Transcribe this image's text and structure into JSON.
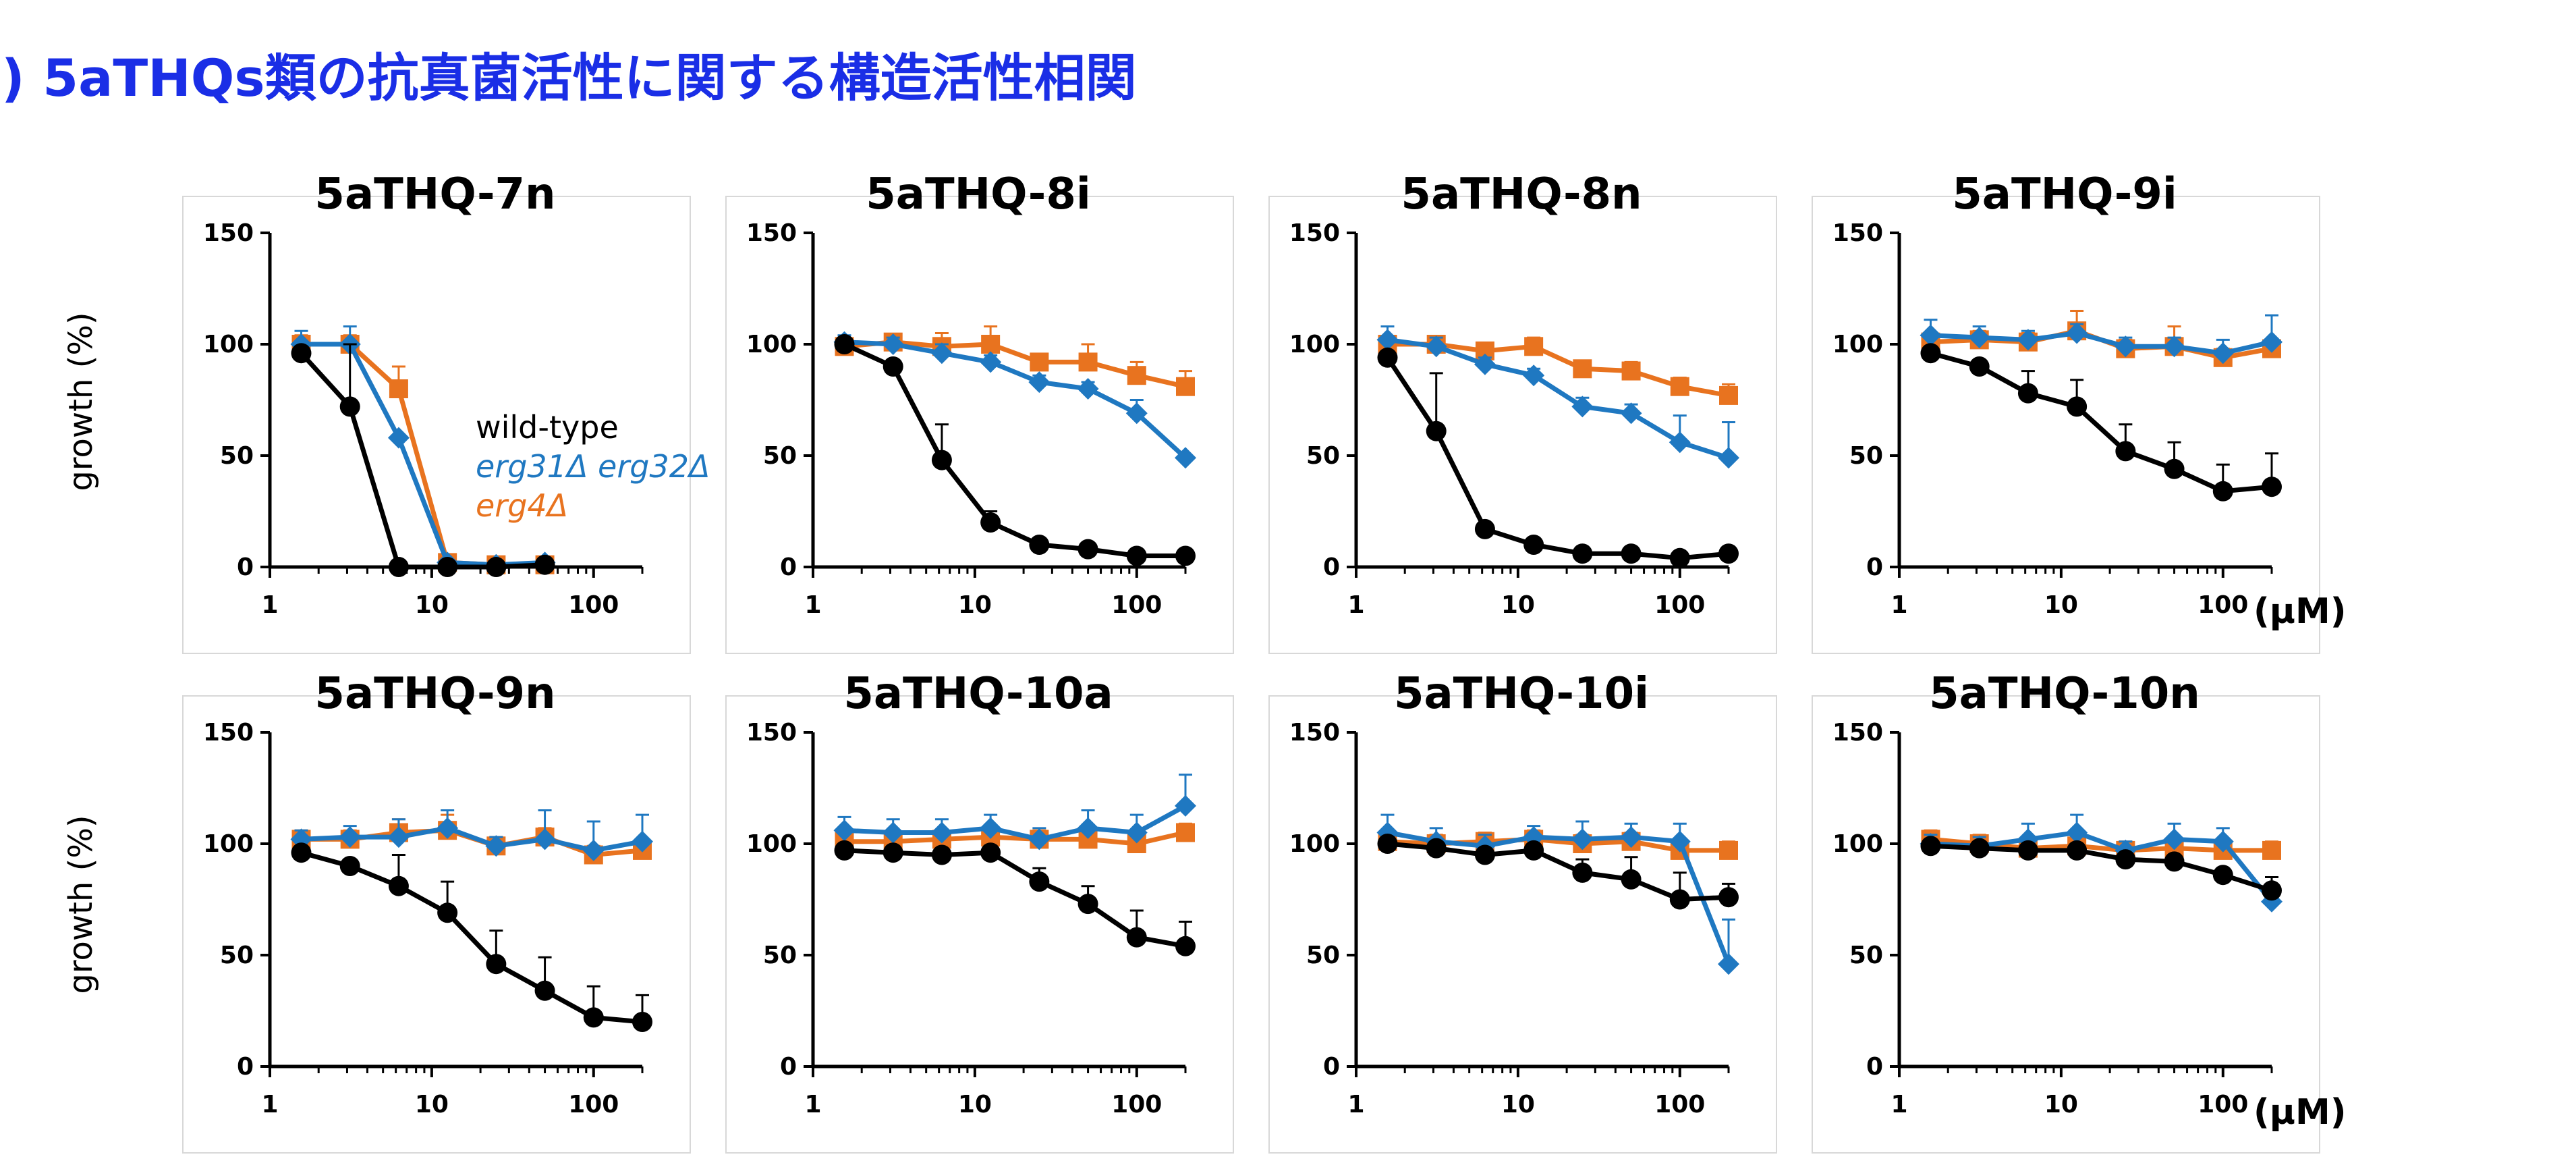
{
  "title": ") 5aTHQs類の抗真菌活性に関する構造活性相関",
  "ylabel": "growth (%)",
  "unit_label": "(μM)",
  "colors": {
    "wild_type": "#000000",
    "erg31_erg32": "#1f78c1",
    "erg4": "#e8731f",
    "title": "#1a2ee6"
  },
  "legend": [
    {
      "name": "wild-type",
      "italic": false,
      "color": "#000000"
    },
    {
      "name": "erg31Δ erg32Δ",
      "italic": true,
      "color": "#1f78c1"
    },
    {
      "name": "erg4Δ",
      "italic": true,
      "color": "#e8731f"
    }
  ],
  "chart_data": [
    {
      "type": "line",
      "title": "5aTHQ-7n",
      "x": [
        1.5625,
        3.125,
        6.25,
        12.5,
        25,
        50
      ],
      "xscale": "log",
      "xlim": [
        1,
        200
      ],
      "xticks": [
        "1",
        "10",
        "100"
      ],
      "ylim": [
        0,
        150
      ],
      "yticks": [
        "0",
        "50",
        "100",
        "150"
      ],
      "series": [
        {
          "name": "wild-type",
          "marker": "circle",
          "values": [
            96,
            72,
            0,
            0,
            0,
            1
          ],
          "errors": [
            0,
            28,
            0,
            0,
            0,
            0
          ]
        },
        {
          "name": "erg31Δ erg32Δ",
          "marker": "diamond",
          "values": [
            100,
            100,
            58,
            2,
            1,
            2
          ],
          "errors": [
            6,
            8,
            0,
            0,
            0,
            0
          ]
        },
        {
          "name": "erg4Δ",
          "marker": "square",
          "values": [
            100,
            100,
            80,
            2,
            1,
            1
          ],
          "errors": [
            4,
            4,
            10,
            0,
            0,
            0
          ]
        }
      ]
    },
    {
      "type": "line",
      "title": "5aTHQ-8i",
      "x": [
        1.5625,
        3.125,
        6.25,
        12.5,
        25,
        50,
        100,
        200
      ],
      "xscale": "log",
      "xlim": [
        1,
        200
      ],
      "xticks": [
        "1",
        "10",
        "100"
      ],
      "ylim": [
        0,
        150
      ],
      "yticks": [
        "0",
        "50",
        "100",
        "150"
      ],
      "series": [
        {
          "name": "wild-type",
          "marker": "circle",
          "values": [
            100,
            90,
            48,
            20,
            10,
            8,
            5,
            5
          ],
          "errors": [
            0,
            0,
            16,
            5,
            0,
            0,
            0,
            0
          ]
        },
        {
          "name": "erg31Δ erg32Δ",
          "marker": "diamond",
          "values": [
            101,
            100,
            96,
            92,
            83,
            80,
            69,
            49
          ],
          "errors": [
            3,
            3,
            4,
            3,
            3,
            3,
            6,
            0
          ]
        },
        {
          "name": "erg4Δ",
          "marker": "square",
          "values": [
            99,
            101,
            99,
            100,
            92,
            92,
            86,
            81
          ],
          "errors": [
            3,
            3,
            6,
            8,
            3,
            8,
            6,
            7
          ]
        }
      ]
    },
    {
      "type": "line",
      "title": "5aTHQ-8n",
      "x": [
        1.5625,
        3.125,
        6.25,
        12.5,
        25,
        50,
        100,
        200
      ],
      "xscale": "log",
      "xlim": [
        1,
        200
      ],
      "xticks": [
        "1",
        "10",
        "100"
      ],
      "ylim": [
        0,
        150
      ],
      "yticks": [
        "0",
        "50",
        "100",
        "150"
      ],
      "series": [
        {
          "name": "wild-type",
          "marker": "circle",
          "values": [
            94,
            61,
            17,
            10,
            6,
            6,
            4,
            6
          ],
          "errors": [
            0,
            26,
            0,
            0,
            0,
            0,
            0,
            0
          ]
        },
        {
          "name": "erg31Δ erg32Δ",
          "marker": "diamond",
          "values": [
            102,
            99,
            91,
            86,
            72,
            69,
            56,
            49
          ],
          "errors": [
            6,
            4,
            3,
            3,
            4,
            4,
            12,
            16
          ]
        },
        {
          "name": "erg4Δ",
          "marker": "square",
          "values": [
            100,
            100,
            97,
            99,
            89,
            88,
            81,
            77
          ],
          "errors": [
            3,
            3,
            3,
            4,
            3,
            4,
            4,
            5
          ]
        }
      ]
    },
    {
      "type": "line",
      "title": "5aTHQ-9i",
      "x": [
        1.5625,
        3.125,
        6.25,
        12.5,
        25,
        50,
        100,
        200
      ],
      "xscale": "log",
      "xlim": [
        1,
        200
      ],
      "xticks": [
        "1",
        "10",
        "100"
      ],
      "ylim": [
        0,
        150
      ],
      "yticks": [
        "0",
        "50",
        "100",
        "150"
      ],
      "series": [
        {
          "name": "wild-type",
          "marker": "circle",
          "values": [
            96,
            90,
            78,
            72,
            52,
            44,
            34,
            36
          ],
          "errors": [
            0,
            0,
            10,
            12,
            12,
            12,
            12,
            15
          ]
        },
        {
          "name": "erg31Δ erg32Δ",
          "marker": "diamond",
          "values": [
            104,
            103,
            102,
            105,
            99,
            99,
            96,
            101
          ],
          "errors": [
            7,
            5,
            4,
            4,
            4,
            4,
            6,
            12
          ]
        },
        {
          "name": "erg4Δ",
          "marker": "square",
          "values": [
            101,
            102,
            101,
            106,
            98,
            99,
            94,
            98
          ],
          "errors": [
            4,
            4,
            4,
            9,
            4,
            9,
            4,
            4
          ]
        }
      ]
    },
    {
      "type": "line",
      "title": "5aTHQ-9n",
      "x": [
        1.5625,
        3.125,
        6.25,
        12.5,
        25,
        50,
        100,
        200
      ],
      "xscale": "log",
      "xlim": [
        1,
        200
      ],
      "xticks": [
        "1",
        "10",
        "100"
      ],
      "ylim": [
        0,
        150
      ],
      "yticks": [
        "0",
        "50",
        "100",
        "150"
      ],
      "series": [
        {
          "name": "wild-type",
          "marker": "circle",
          "values": [
            96,
            90,
            81,
            69,
            46,
            34,
            22,
            20
          ],
          "errors": [
            0,
            0,
            14,
            14,
            15,
            15,
            14,
            12
          ]
        },
        {
          "name": "erg31Δ erg32Δ",
          "marker": "diamond",
          "values": [
            102,
            103,
            103,
            107,
            99,
            102,
            97,
            101
          ],
          "errors": [
            4,
            5,
            8,
            8,
            4,
            13,
            13,
            12
          ]
        },
        {
          "name": "erg4Δ",
          "marker": "square",
          "values": [
            102,
            102,
            105,
            106,
            99,
            103,
            95,
            97
          ],
          "errors": [
            4,
            4,
            6,
            7,
            4,
            4,
            4,
            4
          ]
        }
      ]
    },
    {
      "type": "line",
      "title": "5aTHQ-10a",
      "x": [
        1.5625,
        3.125,
        6.25,
        12.5,
        25,
        50,
        100,
        200
      ],
      "xscale": "log",
      "xlim": [
        1,
        200
      ],
      "xticks": [
        "1",
        "10",
        "100"
      ],
      "ylim": [
        0,
        150
      ],
      "yticks": [
        "0",
        "50",
        "100",
        "150"
      ],
      "series": [
        {
          "name": "wild-type",
          "marker": "circle",
          "values": [
            97,
            96,
            95,
            96,
            83,
            73,
            58,
            54
          ],
          "errors": [
            0,
            0,
            0,
            0,
            6,
            8,
            12,
            11
          ]
        },
        {
          "name": "erg31Δ erg32Δ",
          "marker": "diamond",
          "values": [
            106,
            105,
            105,
            107,
            102,
            107,
            105,
            117
          ],
          "errors": [
            6,
            6,
            6,
            6,
            5,
            8,
            8,
            14
          ]
        },
        {
          "name": "erg4Δ",
          "marker": "square",
          "values": [
            101,
            101,
            102,
            103,
            102,
            102,
            100,
            105
          ],
          "errors": [
            4,
            4,
            4,
            4,
            4,
            4,
            4,
            4
          ]
        }
      ]
    },
    {
      "type": "line",
      "title": "5aTHQ-10i",
      "x": [
        1.5625,
        3.125,
        6.25,
        12.5,
        25,
        50,
        100,
        200
      ],
      "xscale": "log",
      "xlim": [
        1,
        200
      ],
      "xticks": [
        "1",
        "10",
        "100"
      ],
      "ylim": [
        0,
        150
      ],
      "yticks": [
        "0",
        "50",
        "100",
        "150"
      ],
      "series": [
        {
          "name": "wild-type",
          "marker": "circle",
          "values": [
            100,
            98,
            95,
            97,
            87,
            84,
            75,
            76
          ],
          "errors": [
            0,
            0,
            0,
            0,
            6,
            10,
            12,
            6
          ]
        },
        {
          "name": "erg31Δ erg32Δ",
          "marker": "diamond",
          "values": [
            105,
            101,
            99,
            103,
            102,
            103,
            101,
            46
          ],
          "errors": [
            8,
            6,
            5,
            5,
            8,
            6,
            8,
            20
          ]
        },
        {
          "name": "erg4Δ",
          "marker": "square",
          "values": [
            101,
            100,
            101,
            102,
            100,
            101,
            97,
            97
          ],
          "errors": [
            4,
            4,
            4,
            4,
            4,
            4,
            4,
            4
          ]
        }
      ]
    },
    {
      "type": "line",
      "title": "5aTHQ-10n",
      "x": [
        1.5625,
        3.125,
        6.25,
        12.5,
        25,
        50,
        100,
        200
      ],
      "xscale": "log",
      "xlim": [
        1,
        200
      ],
      "xticks": [
        "1",
        "10",
        "100"
      ],
      "ylim": [
        0,
        150
      ],
      "yticks": [
        "0",
        "50",
        "100",
        "150"
      ],
      "series": [
        {
          "name": "wild-type",
          "marker": "circle",
          "values": [
            99,
            98,
            97,
            97,
            93,
            92,
            86,
            79
          ],
          "errors": [
            0,
            0,
            0,
            0,
            0,
            0,
            0,
            6
          ]
        },
        {
          "name": "erg31Δ erg32Δ",
          "marker": "diamond",
          "values": [
            100,
            99,
            102,
            105,
            97,
            102,
            101,
            74
          ],
          "errors": [
            4,
            4,
            7,
            8,
            4,
            7,
            6,
            5
          ]
        },
        {
          "name": "erg4Δ",
          "marker": "square",
          "values": [
            102,
            100,
            98,
            99,
            97,
            98,
            97,
            97
          ],
          "errors": [
            4,
            4,
            4,
            4,
            4,
            4,
            4,
            4
          ]
        }
      ]
    }
  ]
}
